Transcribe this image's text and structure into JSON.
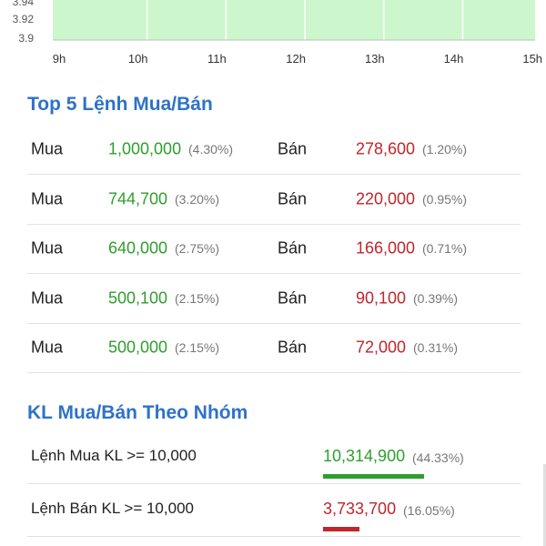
{
  "chart_data": {
    "type": "area",
    "x_ticks": [
      "9h",
      "10h",
      "11h",
      "12h",
      "13h",
      "14h",
      "15h"
    ],
    "y_ticks": [
      "3.94",
      "3.92",
      "3.9"
    ],
    "ylim": [
      3.9,
      3.94
    ],
    "fill_color": "#ccf7cc",
    "grid": true
  },
  "top5": {
    "title": "Top 5 Lệnh Mua/Bán",
    "buy_label": "Mua",
    "sell_label": "Bán",
    "rows": [
      {
        "buy_vol": "1,000,000",
        "buy_pct": "(4.30%)",
        "sell_vol": "278,600",
        "sell_pct": "(1.20%)"
      },
      {
        "buy_vol": "744,700",
        "buy_pct": "(3.20%)",
        "sell_vol": "220,000",
        "sell_pct": "(0.95%)"
      },
      {
        "buy_vol": "640,000",
        "buy_pct": "(2.75%)",
        "sell_vol": "166,000",
        "sell_pct": "(0.71%)"
      },
      {
        "buy_vol": "500,100",
        "buy_pct": "(2.15%)",
        "sell_vol": "90,100",
        "sell_pct": "(0.39%)"
      },
      {
        "buy_vol": "500,000",
        "buy_pct": "(2.15%)",
        "sell_vol": "72,000",
        "sell_pct": "(0.31%)"
      }
    ]
  },
  "group": {
    "title": "KL Mua/Bán Theo Nhóm",
    "rows": [
      {
        "label": "Lệnh Mua KL >= 10,000",
        "vol": "10,314,900",
        "pct": "(44.33%)",
        "share": 0.4433,
        "color": "#2e9e2e"
      },
      {
        "label": "Lệnh Bán KL >= 10,000",
        "vol": "3,733,700",
        "pct": "(16.05%)",
        "share": 0.1605,
        "color": "#c0262c"
      }
    ]
  },
  "colors": {
    "accent": "#2f72c8",
    "buy": "#2e9e2e",
    "sell": "#c0262c"
  }
}
